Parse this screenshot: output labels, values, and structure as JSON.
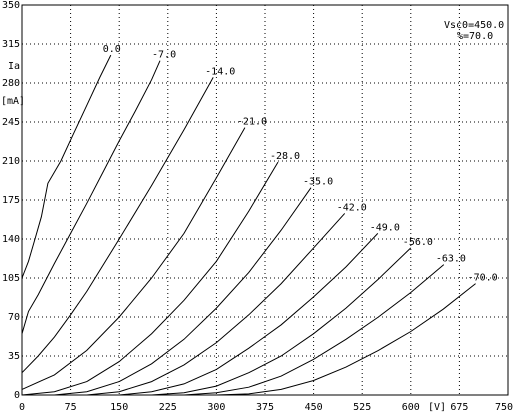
{
  "chart_data": {
    "type": "line",
    "x_label": "[V]",
    "y_label": "Ia",
    "y_unit": "[mA]",
    "annotations": [
      "Vsc0=450.0",
      "%=70.0"
    ],
    "xlim": [
      0,
      750
    ],
    "xticks": [
      0,
      75,
      150,
      225,
      300,
      375,
      450,
      525,
      600,
      675,
      750
    ],
    "ylim": [
      0,
      350
    ],
    "yticks": [
      0,
      35,
      70,
      105,
      140,
      175,
      210,
      245,
      280,
      315,
      350
    ],
    "grid": true,
    "series": [
      {
        "name": "0.0",
        "color": "#000000",
        "x": [
          0,
          10,
          20,
          30,
          40,
          60,
          80,
          100,
          120,
          137
        ],
        "values": [
          105,
          120,
          140,
          160,
          190,
          210,
          235,
          260,
          285,
          305
        ]
      },
      {
        "name": "-7.0",
        "color": "#000000",
        "x": [
          0,
          10,
          25,
          50,
          75,
          100,
          125,
          150,
          175,
          200,
          213
        ],
        "values": [
          55,
          75,
          90,
          118,
          145,
          172,
          200,
          228,
          255,
          283,
          300
        ]
      },
      {
        "name": "-14.0",
        "color": "#000000",
        "x": [
          0,
          25,
          50,
          75,
          100,
          150,
          200,
          250,
          295
        ],
        "values": [
          20,
          35,
          52,
          72,
          93,
          140,
          188,
          238,
          285
        ]
      },
      {
        "name": "-21.0",
        "color": "#000000",
        "x": [
          0,
          50,
          100,
          150,
          200,
          250,
          300,
          344
        ],
        "values": [
          5,
          18,
          40,
          70,
          105,
          145,
          195,
          240
        ]
      },
      {
        "name": "-28.0",
        "color": "#000000",
        "x": [
          0,
          50,
          100,
          150,
          200,
          250,
          300,
          350,
          395
        ],
        "values": [
          0,
          3,
          12,
          30,
          55,
          85,
          120,
          165,
          209
        ]
      },
      {
        "name": "-35.0",
        "color": "#000000",
        "x": [
          50,
          100,
          150,
          200,
          250,
          300,
          350,
          400,
          446
        ],
        "values": [
          0,
          3,
          12,
          28,
          50,
          78,
          110,
          148,
          186
        ]
      },
      {
        "name": "-42.0",
        "color": "#000000",
        "x": [
          100,
          150,
          200,
          250,
          300,
          350,
          400,
          450,
          498
        ],
        "values": [
          0,
          3,
          12,
          27,
          47,
          72,
          100,
          132,
          163
        ]
      },
      {
        "name": "-49.0",
        "color": "#000000",
        "x": [
          150,
          200,
          250,
          300,
          350,
          400,
          450,
          500,
          549
        ],
        "values": [
          0,
          3,
          10,
          23,
          42,
          63,
          88,
          115,
          145
        ]
      },
      {
        "name": "-56.0",
        "color": "#000000",
        "x": [
          200,
          250,
          300,
          350,
          400,
          450,
          500,
          550,
          600
        ],
        "values": [
          0,
          2,
          8,
          20,
          35,
          55,
          78,
          104,
          132
        ]
      },
      {
        "name": "-63.0",
        "color": "#000000",
        "x": [
          250,
          300,
          350,
          400,
          450,
          500,
          550,
          600,
          651
        ],
        "values": [
          0,
          2,
          7,
          17,
          32,
          50,
          70,
          92,
          117
        ]
      },
      {
        "name": "-70.0",
        "color": "#000000",
        "x": [
          300,
          350,
          400,
          450,
          500,
          550,
          600,
          650,
          700
        ],
        "values": [
          0,
          1,
          5,
          13,
          25,
          40,
          57,
          77,
          100
        ]
      }
    ]
  }
}
